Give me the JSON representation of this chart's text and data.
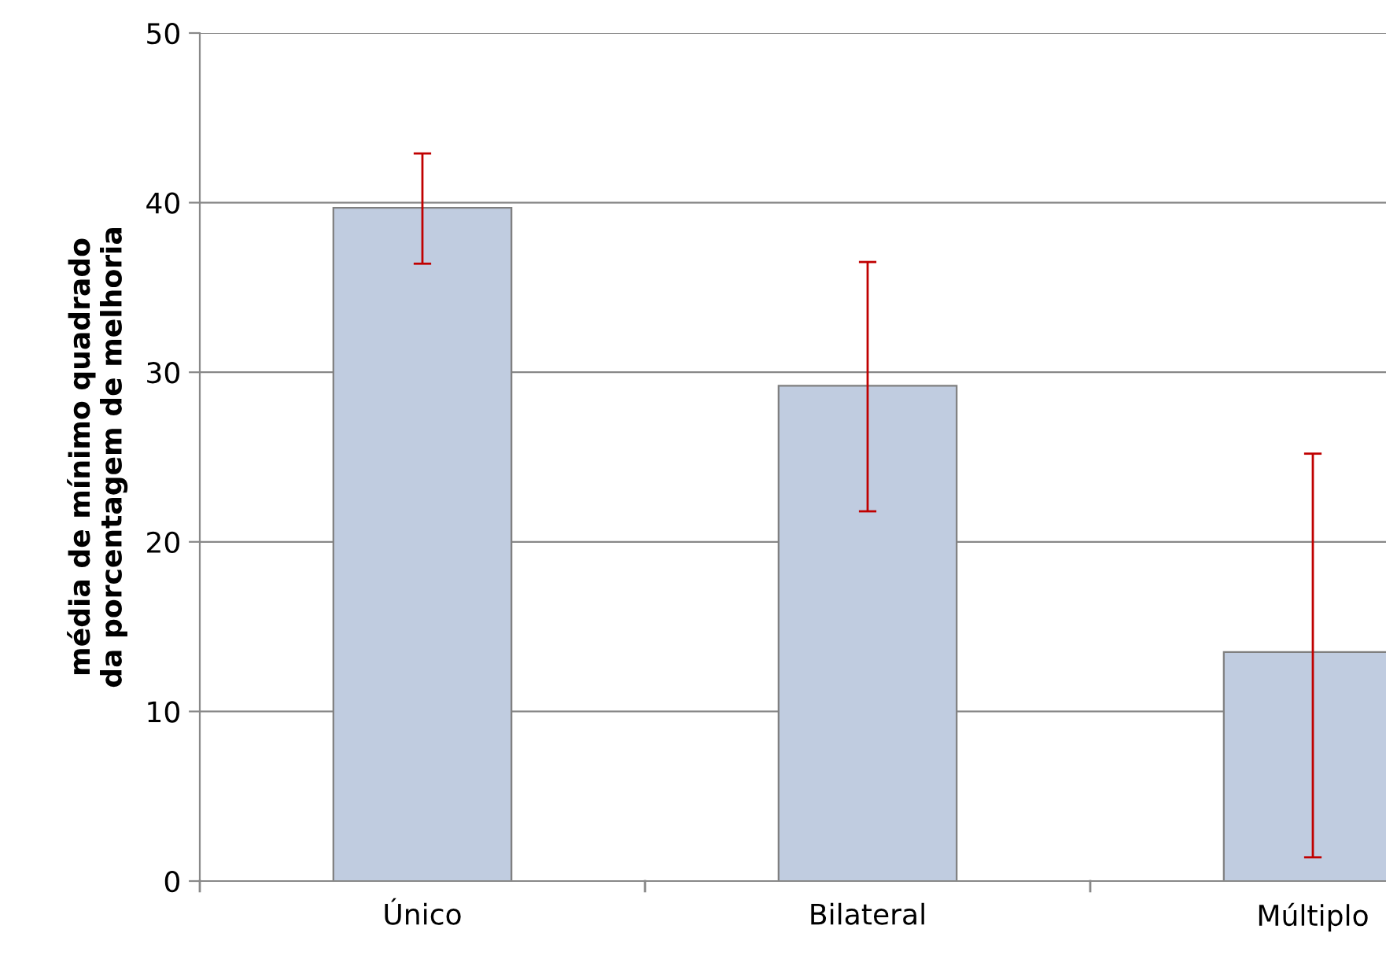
{
  "chart_data": {
    "type": "bar",
    "ylabel": "média de mínimo quadrado da porcentagem de melhoria",
    "categories": [
      "Único",
      "Bilateral",
      "Múltiplo"
    ],
    "values": [
      39.7,
      29.2,
      13.5
    ],
    "errors": [
      [
        36.4,
        42.9
      ],
      [
        21.8,
        36.5
      ],
      [
        1.4,
        25.2
      ]
    ],
    "color": "#c0cce0",
    "ylim": [
      0,
      50
    ],
    "yticks": [
      0,
      10,
      20,
      30,
      40,
      50
    ],
    "grid": "y"
  }
}
